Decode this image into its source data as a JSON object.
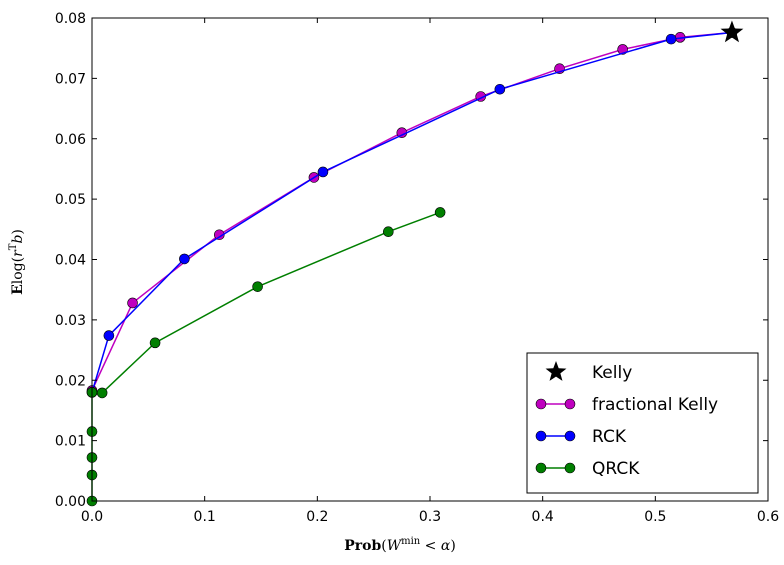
{
  "chart_data": {
    "type": "line",
    "xlabel": "Prob(W^min < α)",
    "ylabel": "E log(r^T b)",
    "xlim": [
      0,
      0.6
    ],
    "ylim": [
      0,
      0.08
    ],
    "x_ticks": [
      "0.0",
      "0.1",
      "0.2",
      "0.3",
      "0.4",
      "0.5",
      "0.6"
    ],
    "y_ticks": [
      "0.00",
      "0.01",
      "0.02",
      "0.03",
      "0.04",
      "0.05",
      "0.06",
      "0.07",
      "0.08"
    ],
    "grid": false,
    "legend_position": "bottom-right",
    "kelly": {
      "name": "Kelly",
      "color": "#000000",
      "x": 0.568,
      "y": 0.0776
    },
    "series": [
      {
        "name": "fractional Kelly",
        "color": "#bf00bf",
        "x": [
          0.0,
          0.036,
          0.113,
          0.197,
          0.275,
          0.345,
          0.415,
          0.471,
          0.522,
          0.568
        ],
        "y": [
          0.0183,
          0.0328,
          0.0441,
          0.0536,
          0.061,
          0.067,
          0.0716,
          0.0748,
          0.0768,
          0.0776
        ]
      },
      {
        "name": "RCK",
        "color": "#0000ff",
        "x": [
          0.0,
          0.015,
          0.082,
          0.205,
          0.362,
          0.514,
          0.568
        ],
        "y": [
          0.018,
          0.0274,
          0.0401,
          0.0545,
          0.0682,
          0.0765,
          0.0776
        ]
      },
      {
        "name": "QRCK",
        "color": "#007f00",
        "x": [
          0.0,
          0.0,
          0.0,
          0.0,
          0.0,
          0.009,
          0.056,
          0.147,
          0.263,
          0.309
        ],
        "y": [
          0.0,
          0.0043,
          0.0072,
          0.0115,
          0.018,
          0.0179,
          0.0262,
          0.0355,
          0.0446,
          0.0478
        ]
      }
    ]
  }
}
